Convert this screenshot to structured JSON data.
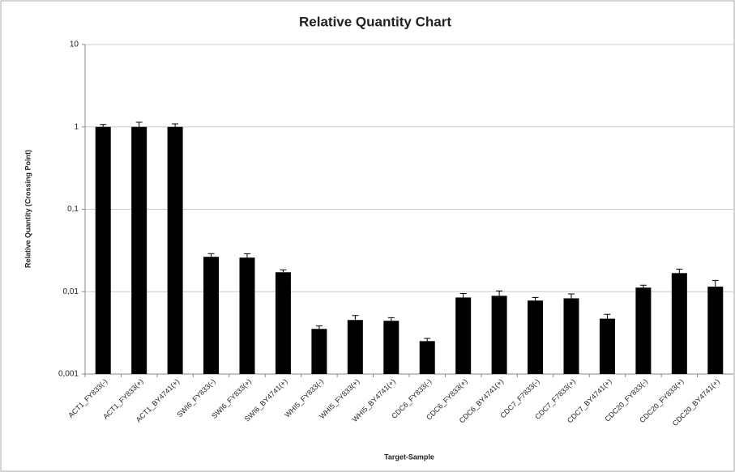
{
  "chart_data": {
    "type": "bar",
    "title": "Relative Quantity Chart",
    "x_label": "Target-Sample",
    "y_label": "Relative Quantity (Crossing Point)",
    "categories": [
      "ACT1_FY833(-)",
      "ACT1_FY833(+)",
      "ACT1_BY4741(+)",
      "SWI6_FY833(-)",
      "SWI6_FY833(+)",
      "SWI6_BY4741(+)",
      "WHI5_FY833(-)",
      "WHI5_FY833(+)",
      "WHI5_BY4741(+)",
      "CDC6_FY833(-)",
      "CDC6_FY833(+)",
      "CDC6_BY4741(+)",
      "CDC7_F7833(-)",
      "CDC7_F7833(+)",
      "CDC7_BY4741(+)",
      "CDC20_FY833(-)",
      "CDC20_FY833(+)",
      "CDC20_BY4741(+)"
    ],
    "values": [
      1.0,
      1.0,
      1.0,
      0.0265,
      0.0259,
      0.0172,
      0.00353,
      0.00453,
      0.00443,
      0.00251,
      0.0085,
      0.0089,
      0.0078,
      0.0083,
      0.0047,
      0.0112,
      0.0168,
      0.0115
    ],
    "errors": [
      0.07,
      0.14,
      0.09,
      0.0025,
      0.003,
      0.0012,
      0.0003,
      0.0006,
      0.0004,
      0.0002,
      0.001,
      0.0013,
      0.0007,
      0.0011,
      0.0006,
      0.0008,
      0.002,
      0.0022
    ],
    "color": "#000000",
    "log_scale": true,
    "grid": true,
    "ylim": [
      0.001,
      10
    ],
    "yticks": [
      {
        "value": 0.001,
        "label": "0,001"
      },
      {
        "value": 0.01,
        "label": "0,01"
      },
      {
        "value": 0.1,
        "label": "0,1"
      },
      1,
      10
    ]
  }
}
